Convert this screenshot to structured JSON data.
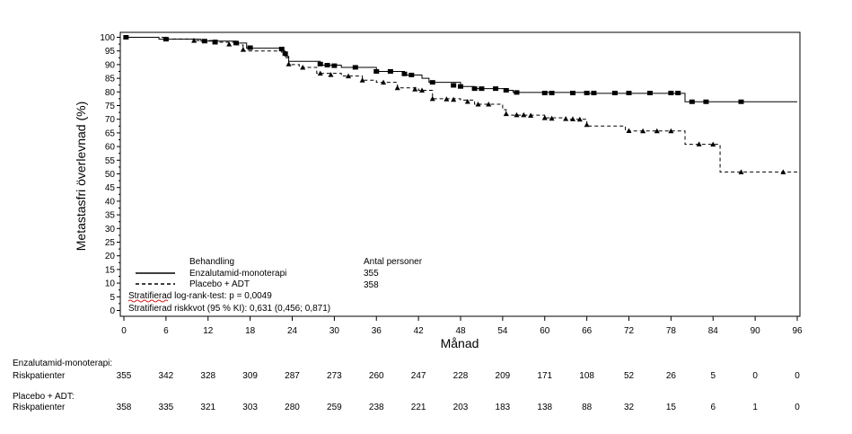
{
  "chart_data": {
    "type": "line",
    "title": "",
    "xlabel": "Månad",
    "ylabel": "Metastasfri överlevnad (%)",
    "xlim": [
      0,
      96
    ],
    "ylim": [
      0,
      100
    ],
    "x_ticks": [
      0,
      6,
      12,
      18,
      24,
      30,
      36,
      42,
      48,
      54,
      60,
      66,
      72,
      78,
      84,
      90,
      96
    ],
    "y_ticks": [
      0,
      5,
      10,
      15,
      20,
      25,
      30,
      35,
      40,
      45,
      50,
      55,
      60,
      65,
      70,
      75,
      80,
      85,
      90,
      95,
      100
    ],
    "grid": false,
    "legend": {
      "placement": "bottom-left",
      "header": "Behandling",
      "count_header": "Antal personer",
      "entries": [
        {
          "label": "Enzalutamid-monoterapi",
          "count": "355",
          "style": "solid"
        },
        {
          "label": "Placebo + ADT",
          "count": "358",
          "style": "dashed"
        }
      ]
    },
    "annotations": [
      "Stratifierad log-rank-test: p = 0,0049",
      "Stratifierad riskkvot (95 % KI): 0,631 (0,456; 0,871)"
    ],
    "series": [
      {
        "name": "Enzalutamid-monoterapi",
        "style": "solid",
        "censor_marker": "square",
        "steps": [
          [
            0,
            100
          ],
          [
            5,
            99.3
          ],
          [
            11,
            98.6
          ],
          [
            16,
            97.9
          ],
          [
            17.5,
            96
          ],
          [
            22.5,
            95
          ],
          [
            23,
            93
          ],
          [
            23.5,
            91.2
          ],
          [
            28,
            89.8
          ],
          [
            31,
            89
          ],
          [
            36,
            87.5
          ],
          [
            40,
            86.2
          ],
          [
            42.5,
            85
          ],
          [
            43.5,
            83.5
          ],
          [
            48,
            82
          ],
          [
            50,
            81.2
          ],
          [
            54.5,
            80.6
          ],
          [
            55.5,
            79.8
          ],
          [
            66,
            79.5
          ],
          [
            80,
            76.4
          ],
          [
            96,
            76.4
          ]
        ],
        "censors": [
          [
            0.3,
            100
          ],
          [
            6,
            99.3
          ],
          [
            11.5,
            98.6
          ],
          [
            13,
            98.3
          ],
          [
            16,
            97.9
          ],
          [
            18,
            96.2
          ],
          [
            22.5,
            95.7
          ],
          [
            23,
            94
          ],
          [
            28,
            90.2
          ],
          [
            29,
            89.8
          ],
          [
            30,
            89.6
          ],
          [
            33,
            89
          ],
          [
            36,
            87.5
          ],
          [
            38,
            87.5
          ],
          [
            40,
            86.6
          ],
          [
            41,
            86.2
          ],
          [
            44,
            83.5
          ],
          [
            47,
            82.4
          ],
          [
            48,
            82
          ],
          [
            50,
            81.2
          ],
          [
            51,
            81.2
          ],
          [
            53,
            81.2
          ],
          [
            54.5,
            80.6
          ],
          [
            56,
            79.8
          ],
          [
            60,
            79.6
          ],
          [
            61,
            79.6
          ],
          [
            64,
            79.6
          ],
          [
            66,
            79.6
          ],
          [
            67,
            79.6
          ],
          [
            70,
            79.6
          ],
          [
            72,
            79.6
          ],
          [
            75,
            79.6
          ],
          [
            78,
            79.6
          ],
          [
            79,
            79.6
          ],
          [
            81,
            76.4
          ],
          [
            83,
            76.4
          ],
          [
            88,
            76.4
          ]
        ]
      },
      {
        "name": "Placebo + ADT",
        "style": "dashed",
        "censor_marker": "triangle",
        "steps": [
          [
            0,
            100
          ],
          [
            6,
            99.4
          ],
          [
            10,
            98.8
          ],
          [
            13,
            98.2
          ],
          [
            16,
            97.2
          ],
          [
            17,
            95
          ],
          [
            22.5,
            94.5
          ],
          [
            23,
            92.5
          ],
          [
            23.5,
            90
          ],
          [
            25,
            89
          ],
          [
            27.5,
            86.8
          ],
          [
            31,
            85.8
          ],
          [
            34,
            84.3
          ],
          [
            36,
            83.5
          ],
          [
            39,
            81.5
          ],
          [
            42,
            80.6
          ],
          [
            44,
            77.5
          ],
          [
            48,
            77
          ],
          [
            50,
            75.5
          ],
          [
            54,
            73.5
          ],
          [
            54.5,
            71.5
          ],
          [
            60,
            70.5
          ],
          [
            63,
            70
          ],
          [
            66,
            67.5
          ],
          [
            71.5,
            65.7
          ],
          [
            80,
            60.8
          ],
          [
            85,
            50.7
          ],
          [
            96,
            50.7
          ]
        ],
        "censors": [
          [
            6,
            99.4
          ],
          [
            10,
            98.8
          ],
          [
            13,
            98.2
          ],
          [
            15,
            97.5
          ],
          [
            17,
            95.5
          ],
          [
            23.5,
            90.2
          ],
          [
            25.5,
            89
          ],
          [
            28,
            86.8
          ],
          [
            29.5,
            86.3
          ],
          [
            32,
            85.8
          ],
          [
            34,
            84.3
          ],
          [
            37,
            83.5
          ],
          [
            39,
            81.5
          ],
          [
            41.5,
            81
          ],
          [
            42.5,
            80.6
          ],
          [
            44,
            77.5
          ],
          [
            46,
            77.4
          ],
          [
            47,
            77.2
          ],
          [
            49,
            76.5
          ],
          [
            50.5,
            75.5
          ],
          [
            52,
            75.5
          ],
          [
            54.5,
            72
          ],
          [
            56,
            71.6
          ],
          [
            57,
            71.6
          ],
          [
            58,
            71.4
          ],
          [
            60,
            70.5
          ],
          [
            61,
            70.3
          ],
          [
            63,
            70.2
          ],
          [
            64,
            70.1
          ],
          [
            65,
            70
          ],
          [
            66,
            68
          ],
          [
            72,
            65.8
          ],
          [
            74,
            65.7
          ],
          [
            76,
            65.7
          ],
          [
            78,
            65.7
          ],
          [
            82,
            60.9
          ],
          [
            84,
            60.8
          ],
          [
            88,
            50.7
          ],
          [
            94,
            50.7
          ]
        ]
      }
    ],
    "risk_table": {
      "times": [
        0,
        6,
        12,
        18,
        24,
        30,
        36,
        42,
        48,
        54,
        60,
        66,
        72,
        78,
        84,
        90,
        96
      ],
      "rows": [
        {
          "group_label": "Enzalutamid-monoterapi:",
          "row_label": "Riskpatienter",
          "values": [
            "355",
            "342",
            "328",
            "309",
            "287",
            "273",
            "260",
            "247",
            "228",
            "209",
            "171",
            "108",
            "52",
            "26",
            "5",
            "0",
            "0"
          ]
        },
        {
          "group_label": "Placebo + ADT:",
          "row_label": "Riskpatienter",
          "values": [
            "358",
            "335",
            "321",
            "303",
            "280",
            "259",
            "238",
            "221",
            "203",
            "183",
            "138",
            "88",
            "32",
            "15",
            "6",
            "1",
            "0"
          ]
        }
      ]
    },
    "colors": {
      "line": "#000000",
      "squiggle": "#e02020"
    }
  }
}
